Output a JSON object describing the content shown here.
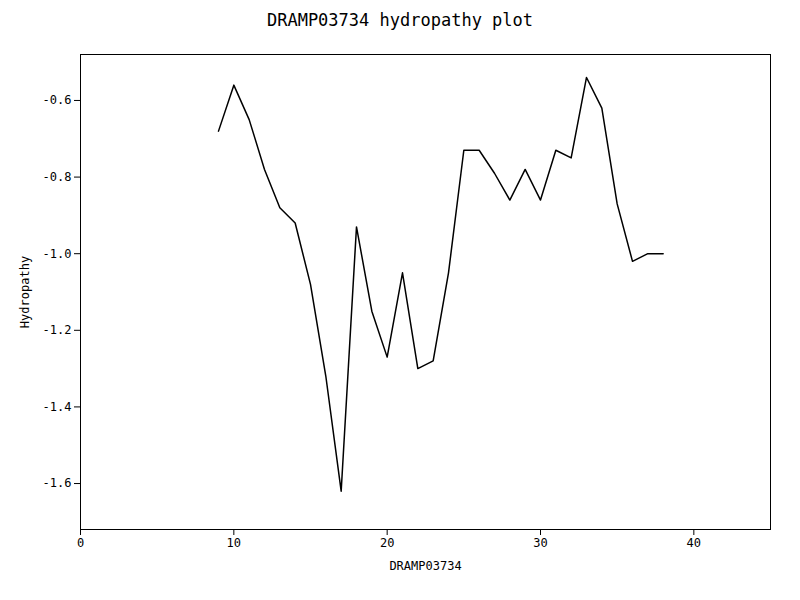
{
  "chart_data": {
    "type": "line",
    "title": "DRAMP03734 hydropathy plot",
    "xlabel": "DRAMP03734",
    "ylabel": "Hydropathy",
    "x": [
      9,
      10,
      11,
      12,
      13,
      14,
      15,
      16,
      17,
      18,
      19,
      20,
      21,
      22,
      23,
      24,
      25,
      26,
      27,
      28,
      29,
      30,
      31,
      32,
      33,
      34,
      35,
      36,
      37,
      38
    ],
    "values": [
      -0.68,
      -0.56,
      -0.65,
      -0.78,
      -0.88,
      -0.92,
      -1.08,
      -1.32,
      -1.62,
      -0.93,
      -1.15,
      -1.27,
      -1.05,
      -1.3,
      -1.28,
      -1.05,
      -0.73,
      -0.73,
      -0.79,
      -0.86,
      -0.78,
      -0.86,
      -0.73,
      -0.75,
      -0.54,
      -0.62,
      -0.87,
      -1.02,
      -1.0,
      -1.0
    ],
    "color": "black",
    "xlim": [
      0,
      45
    ],
    "ylim": [
      -1.72,
      -0.48
    ],
    "xticks": [
      0,
      10,
      20,
      30,
      40
    ],
    "yticks": [
      -1.6,
      -1.4,
      -1.2,
      {
        "value": -1.0,
        "label": "-1.0"
      },
      -0.8,
      -0.6
    ],
    "grid": false
  }
}
